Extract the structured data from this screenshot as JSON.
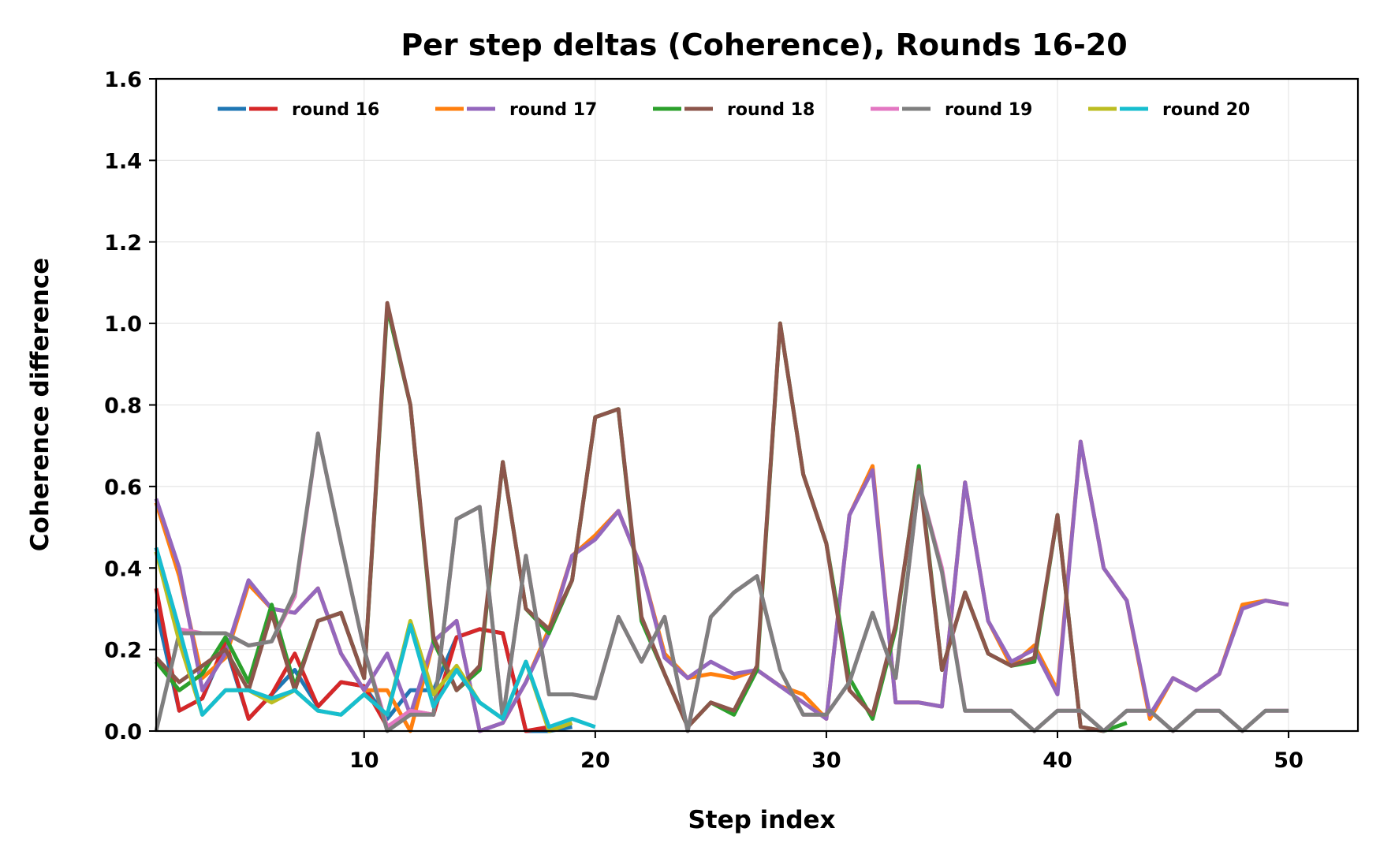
{
  "chart_data": {
    "type": "line",
    "title": "Per step deltas (Coherence), Rounds 16-20",
    "xlabel": "Step index",
    "ylabel": "Coherence difference",
    "xlim": [
      1,
      53
    ],
    "ylim": [
      0,
      1.6
    ],
    "xticks": [
      10,
      20,
      30,
      40,
      50
    ],
    "yticks": [
      0.0,
      0.2,
      0.4,
      0.6,
      0.8,
      1.0,
      1.2,
      1.4,
      1.6
    ],
    "ytick_labels": [
      "0.0",
      "0.2",
      "0.4",
      "0.6",
      "0.8",
      "1.0",
      "1.2",
      "1.4",
      "1.6"
    ],
    "grid": true,
    "legend": {
      "placement": "top",
      "entries": [
        {
          "label": "round 16",
          "colors": [
            "#1f77b4",
            "#d62728"
          ]
        },
        {
          "label": "round 17",
          "colors": [
            "#ff7f0e",
            "#9467bd"
          ]
        },
        {
          "label": "round 18",
          "colors": [
            "#2ca02c",
            "#8c564b"
          ]
        },
        {
          "label": "round 19",
          "colors": [
            "#e377c2",
            "#7f7f7f"
          ]
        },
        {
          "label": "round 20",
          "colors": [
            "#bcbd22",
            "#17becf"
          ]
        }
      ]
    },
    "series": [
      {
        "color": "#1f77b4",
        "x": [
          1,
          2,
          3,
          4,
          5,
          6,
          7,
          8,
          9,
          10,
          11,
          12,
          13,
          14,
          15,
          16,
          17,
          18,
          19
        ],
        "y": [
          0.3,
          0.05,
          0.08,
          0.21,
          0.03,
          0.09,
          0.15,
          0.06,
          0.12,
          0.11,
          0.03,
          0.1,
          0.1,
          0.23,
          0.25,
          0.24,
          0.0,
          0.0,
          0.01
        ]
      },
      {
        "color": "#d62728",
        "x": [
          1,
          2,
          3,
          4,
          5,
          6,
          7,
          8,
          9,
          10,
          11,
          12,
          13,
          14,
          15,
          16,
          17,
          18
        ],
        "y": [
          0.35,
          0.05,
          0.08,
          0.22,
          0.03,
          0.09,
          0.19,
          0.06,
          0.12,
          0.11,
          0.01,
          0.05,
          0.04,
          0.23,
          0.25,
          0.24,
          0.0,
          0.01
        ]
      },
      {
        "color": "#ff7f0e",
        "x": [
          1,
          2,
          3,
          4,
          5,
          6,
          7,
          8,
          9,
          10,
          11,
          12,
          13,
          14,
          15,
          16,
          17,
          18,
          19,
          20,
          21,
          22,
          23,
          24,
          25,
          26,
          27,
          28,
          29,
          30,
          31,
          32,
          33,
          34,
          35,
          36,
          37,
          38,
          39,
          40,
          41,
          42,
          43,
          44,
          45,
          46,
          47,
          48,
          49,
          50
        ],
        "y": [
          0.56,
          0.38,
          0.13,
          0.18,
          0.36,
          0.3,
          0.29,
          0.35,
          0.19,
          0.1,
          0.1,
          0.0,
          0.22,
          0.27,
          0.0,
          0.02,
          0.12,
          0.25,
          0.43,
          0.48,
          0.54,
          0.4,
          0.19,
          0.13,
          0.14,
          0.13,
          0.15,
          0.11,
          0.09,
          0.03,
          0.53,
          0.65,
          0.07,
          0.07,
          0.06,
          0.61,
          0.27,
          0.16,
          0.21,
          0.1,
          0.71,
          0.4,
          0.32,
          0.03,
          0.13,
          0.1,
          0.14,
          0.31,
          0.32,
          0.31
        ]
      },
      {
        "color": "#9467bd",
        "x": [
          1,
          2,
          3,
          4,
          5,
          6,
          7,
          8,
          9,
          10,
          11,
          12,
          13,
          14,
          15,
          16,
          17,
          18,
          19,
          20,
          21,
          22,
          23,
          24,
          25,
          26,
          27,
          28,
          29,
          30,
          31,
          32,
          33,
          34,
          35,
          36,
          37,
          38,
          39,
          40,
          41,
          42,
          43,
          44,
          45,
          46,
          47,
          48,
          49,
          50
        ],
        "y": [
          0.57,
          0.4,
          0.1,
          0.19,
          0.37,
          0.3,
          0.29,
          0.35,
          0.19,
          0.1,
          0.19,
          0.04,
          0.22,
          0.27,
          0.0,
          0.02,
          0.12,
          0.24,
          0.43,
          0.47,
          0.54,
          0.4,
          0.18,
          0.13,
          0.17,
          0.14,
          0.15,
          0.11,
          0.07,
          0.03,
          0.53,
          0.64,
          0.07,
          0.07,
          0.06,
          0.61,
          0.27,
          0.17,
          0.2,
          0.09,
          0.71,
          0.4,
          0.32,
          0.04,
          0.13,
          0.1,
          0.14,
          0.3,
          0.32,
          0.31
        ]
      },
      {
        "color": "#2ca02c",
        "x": [
          1,
          2,
          3,
          4,
          5,
          6,
          7,
          8,
          9,
          10,
          11,
          12,
          13,
          14,
          15,
          16,
          17,
          18,
          19,
          20,
          21,
          22,
          23,
          24,
          25,
          26,
          27,
          28,
          29,
          30,
          31,
          32,
          33,
          34,
          35,
          36,
          37,
          38,
          39,
          40,
          41,
          42,
          43
        ],
        "y": [
          0.17,
          0.1,
          0.14,
          0.23,
          0.12,
          0.31,
          0.11,
          0.27,
          0.29,
          0.13,
          1.04,
          0.8,
          0.22,
          0.1,
          0.15,
          0.66,
          0.3,
          0.24,
          0.37,
          0.77,
          0.79,
          0.27,
          0.14,
          0.01,
          0.07,
          0.04,
          0.15,
          1.0,
          0.63,
          0.46,
          0.13,
          0.03,
          0.25,
          0.65,
          0.15,
          0.34,
          0.19,
          0.16,
          0.17,
          0.53,
          0.01,
          0.0,
          0.02
        ]
      },
      {
        "color": "#8c564b",
        "x": [
          1,
          2,
          3,
          4,
          5,
          6,
          7,
          8,
          9,
          10,
          11,
          12,
          13,
          14,
          15,
          16,
          17,
          18,
          19,
          20,
          21,
          22,
          23,
          24,
          25,
          26,
          27,
          28,
          29,
          30,
          31,
          32,
          33,
          34,
          35,
          36,
          37,
          38,
          39,
          40,
          41,
          42
        ],
        "y": [
          0.18,
          0.12,
          0.16,
          0.2,
          0.1,
          0.29,
          0.1,
          0.27,
          0.29,
          0.13,
          1.05,
          0.8,
          0.23,
          0.1,
          0.16,
          0.66,
          0.3,
          0.25,
          0.37,
          0.77,
          0.79,
          0.28,
          0.14,
          0.01,
          0.07,
          0.05,
          0.16,
          1.0,
          0.63,
          0.46,
          0.1,
          0.04,
          0.26,
          0.64,
          0.15,
          0.34,
          0.19,
          0.16,
          0.18,
          0.53,
          0.01,
          0.0
        ]
      },
      {
        "color": "#e377c2",
        "x": [
          1,
          2,
          3,
          4,
          5,
          6,
          7,
          8,
          9,
          10,
          11,
          12,
          13,
          14,
          15,
          16,
          17,
          18,
          19,
          20,
          21,
          22,
          23,
          24,
          25,
          26,
          27,
          28,
          29,
          30,
          31,
          32,
          33,
          34,
          35,
          36,
          37,
          38,
          39,
          40,
          41,
          42,
          43,
          44,
          45,
          46,
          47,
          48,
          49,
          50
        ],
        "y": [
          0.45,
          0.25,
          0.24,
          0.24,
          0.21,
          0.22,
          0.33,
          0.73,
          0.46,
          0.2,
          0.01,
          0.05,
          0.04,
          0.52,
          0.55,
          0.03,
          0.43,
          0.09,
          0.09,
          0.08,
          0.28,
          0.17,
          0.28,
          0.0,
          0.28,
          0.34,
          0.38,
          0.15,
          0.04,
          0.04,
          0.12,
          0.29,
          0.13,
          0.61,
          0.4,
          0.05,
          0.05,
          0.05,
          0.0,
          0.05,
          0.05,
          0.0,
          0.05,
          0.05,
          0.0,
          0.05,
          0.05,
          0.0,
          0.05,
          0.05
        ]
      },
      {
        "color": "#7f7f7f",
        "x": [
          1,
          2,
          3,
          4,
          5,
          6,
          7,
          8,
          9,
          10,
          11,
          12,
          13,
          14,
          15,
          16,
          17,
          18,
          19,
          20,
          21,
          22,
          23,
          24,
          25,
          26,
          27,
          28,
          29,
          30,
          31,
          32,
          33,
          34,
          35,
          36,
          37,
          38,
          39,
          40,
          41,
          42,
          43,
          44,
          45,
          46,
          47,
          48,
          49,
          50
        ],
        "y": [
          0.0,
          0.24,
          0.24,
          0.24,
          0.21,
          0.22,
          0.34,
          0.73,
          0.46,
          0.2,
          0.0,
          0.04,
          0.04,
          0.52,
          0.55,
          0.03,
          0.43,
          0.09,
          0.09,
          0.08,
          0.28,
          0.17,
          0.28,
          0.0,
          0.28,
          0.34,
          0.38,
          0.15,
          0.04,
          0.04,
          0.12,
          0.29,
          0.13,
          0.61,
          0.39,
          0.05,
          0.05,
          0.05,
          0.0,
          0.05,
          0.05,
          0.0,
          0.05,
          0.05,
          0.0,
          0.05,
          0.05,
          0.0,
          0.05,
          0.05
        ]
      },
      {
        "color": "#bcbd22",
        "x": [
          1,
          2,
          3,
          4,
          5,
          6,
          7,
          8,
          9,
          10,
          11,
          12,
          13,
          14,
          15,
          16,
          17,
          18,
          19
        ],
        "y": [
          0.44,
          0.22,
          0.04,
          0.1,
          0.1,
          0.07,
          0.1,
          0.05,
          0.04,
          0.09,
          0.04,
          0.27,
          0.09,
          0.16,
          0.07,
          0.03,
          0.17,
          0.0,
          0.02
        ]
      },
      {
        "color": "#17becf",
        "x": [
          1,
          2,
          3,
          4,
          5,
          6,
          7,
          8,
          9,
          10,
          11,
          12,
          13,
          14,
          15,
          16,
          17,
          18,
          19,
          20
        ],
        "y": [
          0.45,
          0.25,
          0.04,
          0.1,
          0.1,
          0.08,
          0.1,
          0.05,
          0.04,
          0.09,
          0.04,
          0.26,
          0.06,
          0.15,
          0.07,
          0.03,
          0.17,
          0.01,
          0.03,
          0.01
        ]
      }
    ]
  }
}
